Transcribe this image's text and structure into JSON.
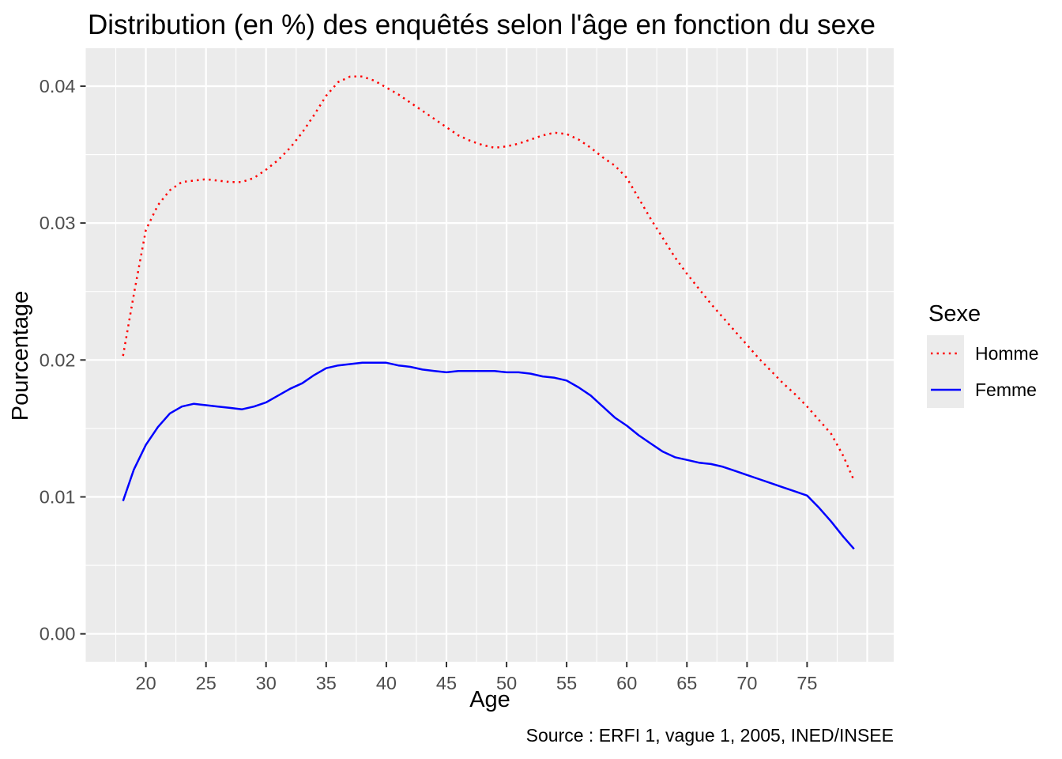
{
  "chart_data": {
    "type": "line",
    "title": "Distribution (en %) des enquêtés selon l'âge en fonction du sexe",
    "xlabel": "Age",
    "ylabel": "Pourcentage",
    "caption": "Source : ERFI 1, vague 1, 2005, INED/INSEE",
    "legend": {
      "title": "Sexe",
      "position": "right"
    },
    "x": [
      18.1,
      19,
      20,
      21,
      22,
      23,
      24,
      25,
      26,
      27,
      28,
      29,
      30,
      31,
      32,
      33,
      34,
      35,
      36,
      37,
      38,
      39,
      40,
      41,
      42,
      43,
      44,
      45,
      46,
      47,
      48,
      49,
      50,
      51,
      52,
      53,
      54,
      55,
      56,
      57,
      58,
      59,
      60,
      61,
      62,
      63,
      64,
      65,
      66,
      67,
      68,
      69,
      70,
      71,
      72,
      73,
      74,
      75,
      76,
      77,
      78,
      78.9
    ],
    "series": [
      {
        "name": "Homme",
        "color": "#FF0000",
        "style": "dotted",
        "values": [
          0.0203,
          0.0248,
          0.0295,
          0.0313,
          0.0324,
          0.033,
          0.0331,
          0.0332,
          0.0331,
          0.033,
          0.033,
          0.0333,
          0.0339,
          0.0346,
          0.0355,
          0.0366,
          0.0379,
          0.0393,
          0.0403,
          0.0407,
          0.0407,
          0.0404,
          0.0399,
          0.0394,
          0.0388,
          0.0382,
          0.0376,
          0.037,
          0.0364,
          0.036,
          0.0357,
          0.0355,
          0.0356,
          0.0358,
          0.0361,
          0.0364,
          0.0366,
          0.0365,
          0.0361,
          0.0355,
          0.0348,
          0.0342,
          0.0333,
          0.0318,
          0.0303,
          0.0289,
          0.0275,
          0.0263,
          0.0252,
          0.0241,
          0.0231,
          0.0221,
          0.0211,
          0.0201,
          0.0192,
          0.0183,
          0.0175,
          0.0166,
          0.0156,
          0.0146,
          0.013,
          0.0112
        ]
      },
      {
        "name": "Femme",
        "color": "#0000FF",
        "style": "solid",
        "values": [
          0.0097,
          0.012,
          0.0138,
          0.0151,
          0.0161,
          0.0166,
          0.0168,
          0.0167,
          0.0166,
          0.0165,
          0.0164,
          0.0166,
          0.0169,
          0.0174,
          0.0179,
          0.0183,
          0.0189,
          0.0194,
          0.0196,
          0.0197,
          0.0198,
          0.0198,
          0.0198,
          0.0196,
          0.0195,
          0.0193,
          0.0192,
          0.0191,
          0.0192,
          0.0192,
          0.0192,
          0.0192,
          0.0191,
          0.0191,
          0.019,
          0.0188,
          0.0187,
          0.0185,
          0.018,
          0.0174,
          0.0166,
          0.0158,
          0.0152,
          0.0145,
          0.0139,
          0.0133,
          0.0129,
          0.0127,
          0.0125,
          0.0124,
          0.0122,
          0.0119,
          0.0116,
          0.0113,
          0.011,
          0.0107,
          0.0104,
          0.0101,
          0.0092,
          0.0082,
          0.0071,
          0.0062
        ]
      }
    ],
    "axes": {
      "x_ticks": [
        20,
        25,
        30,
        35,
        40,
        45,
        50,
        55,
        60,
        65,
        70,
        75
      ],
      "x_tick_labels": [
        "20",
        "25",
        "30",
        "35",
        "40",
        "45",
        "50",
        "55",
        "60",
        "65",
        "70",
        "75"
      ],
      "x_minor": [
        17.5,
        22.5,
        27.5,
        32.5,
        37.5,
        42.5,
        47.5,
        52.5,
        57.5,
        62.5,
        67.5,
        72.5,
        77.5
      ],
      "x_extra_major": [
        80
      ],
      "y_ticks": [
        0,
        0.01,
        0.02,
        0.03,
        0.04
      ],
      "y_tick_labels": [
        "0.00",
        "0.01",
        "0.02",
        "0.03",
        "0.04"
      ],
      "y_minor": [
        0.005,
        0.015,
        0.025,
        0.035
      ],
      "xlim": [
        15.0,
        82.2
      ],
      "ylim": [
        -0.00204,
        0.04277
      ],
      "grid": true,
      "panel_bg": "#EBEBEB",
      "grid_color": "#FFFFFF",
      "tick_color": "#333333",
      "tick_label_color": "#4D4D4D"
    }
  }
}
